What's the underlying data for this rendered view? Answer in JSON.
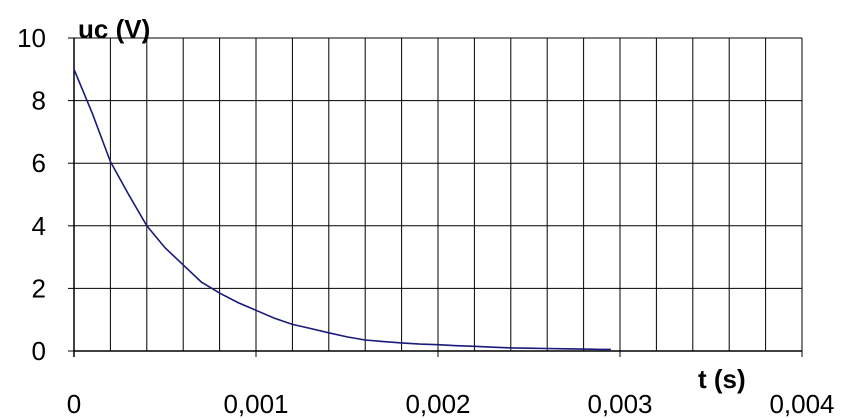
{
  "chart_data": {
    "type": "line",
    "title": "",
    "xlabel": "t (s)",
    "ylabel": "uc (V)",
    "xlim": [
      0,
      0.004
    ],
    "ylim": [
      0,
      10
    ],
    "x_ticks": [
      0,
      0.001,
      0.002,
      0.003,
      0.004
    ],
    "x_tick_labels": [
      "0",
      "0,001",
      "0,002",
      "0,003",
      "0,004"
    ],
    "y_ticks": [
      0,
      2,
      4,
      6,
      8,
      10
    ],
    "y_tick_labels": [
      "0",
      "2",
      "4",
      "6",
      "8",
      "10"
    ],
    "x_grid_step": 0.0002,
    "y_grid_step": 2,
    "grid": true,
    "legend": "none",
    "colors": {
      "line": "#1a1a7a",
      "grid": "#000000",
      "background": "#ffffff"
    },
    "series": [
      {
        "x": [
          0,
          0.0001,
          0.0002,
          0.0003,
          0.0004,
          0.0005,
          0.0006,
          0.0007,
          0.0008,
          0.0009,
          0.001,
          0.0011,
          0.0012,
          0.0013,
          0.0014,
          0.0015,
          0.0016,
          0.0017,
          0.0018,
          0.0019,
          0.002,
          0.0021,
          0.0022,
          0.0023,
          0.0024,
          0.0025,
          0.0026,
          0.0027,
          0.0028,
          0.0029,
          0.00295
        ],
        "y": [
          9.0,
          7.6,
          6.05,
          5.0,
          4.0,
          3.3,
          2.75,
          2.2,
          1.85,
          1.55,
          1.3,
          1.05,
          0.85,
          0.72,
          0.58,
          0.45,
          0.35,
          0.3,
          0.26,
          0.22,
          0.2,
          0.17,
          0.15,
          0.12,
          0.1,
          0.09,
          0.08,
          0.07,
          0.06,
          0.05,
          0.05
        ]
      }
    ]
  }
}
